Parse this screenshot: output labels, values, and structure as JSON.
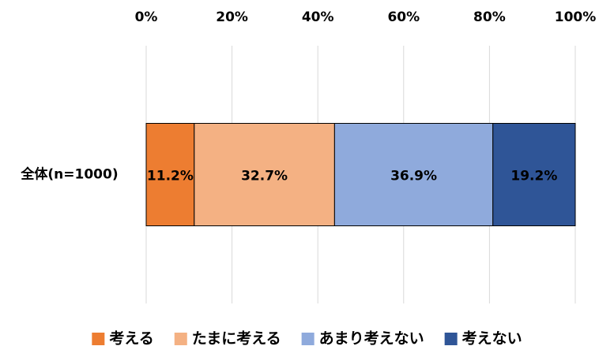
{
  "chart_data": {
    "type": "bar",
    "orientation": "horizontal",
    "stacked": true,
    "categories": [
      "全体(n=1000)"
    ],
    "series": [
      {
        "name": "考える",
        "color": "#ed7d31",
        "values": [
          11.2
        ],
        "value_labels": [
          "11.2%"
        ]
      },
      {
        "name": "たまに考える",
        "color": "#f4b183",
        "values": [
          32.7
        ],
        "value_labels": [
          "32.7%"
        ]
      },
      {
        "name": "あまり考えない",
        "color": "#8faadc",
        "values": [
          36.9
        ],
        "value_labels": [
          "36.9%"
        ]
      },
      {
        "name": "考えない",
        "color": "#2f5597",
        "values": [
          19.2
        ],
        "value_labels": [
          "19.2%"
        ]
      }
    ],
    "xlim": [
      0,
      100
    ],
    "xticks": [
      {
        "value": 0,
        "label": "0%"
      },
      {
        "value": 20,
        "label": "20%"
      },
      {
        "value": 40,
        "label": "40%"
      },
      {
        "value": 60,
        "label": "60%"
      },
      {
        "value": 80,
        "label": "80%"
      },
      {
        "value": 100,
        "label": "100%"
      }
    ],
    "grid": true,
    "legend": "bottom"
  }
}
